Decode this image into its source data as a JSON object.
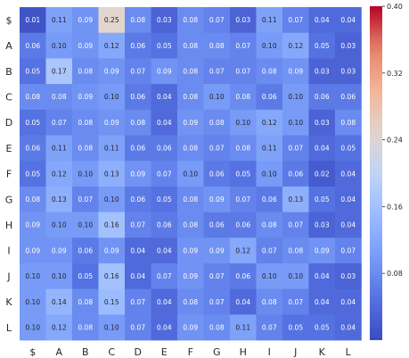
{
  "chart_data": {
    "type": "heatmap",
    "x_categories": [
      "$",
      "A",
      "B",
      "C",
      "D",
      "E",
      "F",
      "G",
      "H",
      "I",
      "J",
      "K",
      "L"
    ],
    "y_categories": [
      "$",
      "A",
      "B",
      "C",
      "D",
      "E",
      "F",
      "G",
      "H",
      "I",
      "J",
      "K",
      "L"
    ],
    "values": [
      [
        "0.01",
        "0.11",
        "0.09",
        "0.25",
        "0.08",
        "0.03",
        "0.08",
        "0.07",
        "0.03",
        "0.11",
        "0.07",
        "0.04",
        "0.04"
      ],
      [
        "0.06",
        "0.10",
        "0.09",
        "0.12",
        "0.06",
        "0.05",
        "0.08",
        "0.08",
        "0.07",
        "0.10",
        "0.12",
        "0.05",
        "0.03"
      ],
      [
        "0.05",
        "0.17",
        "0.08",
        "0.09",
        "0.07",
        "0.09",
        "0.08",
        "0.07",
        "0.07",
        "0.08",
        "0.09",
        "0.03",
        "0.03"
      ],
      [
        "0.08",
        "0.08",
        "0.09",
        "0.10",
        "0.06",
        "0.04",
        "0.08",
        "0.10",
        "0.08",
        "0.06",
        "0.10",
        "0.06",
        "0.06"
      ],
      [
        "0.05",
        "0.07",
        "0.08",
        "0.09",
        "0.08",
        "0.04",
        "0.09",
        "0.08",
        "0.10",
        "0.12",
        "0.10",
        "0.03",
        "0.08"
      ],
      [
        "0.06",
        "0.11",
        "0.08",
        "0.11",
        "0.06",
        "0.06",
        "0.08",
        "0.07",
        "0.08",
        "0.11",
        "0.07",
        "0.04",
        "0.05"
      ],
      [
        "0.05",
        "0.12",
        "0.10",
        "0.13",
        "0.09",
        "0.07",
        "0.10",
        "0.06",
        "0.05",
        "0.10",
        "0.06",
        "0.02",
        "0.04"
      ],
      [
        "0.08",
        "0.13",
        "0.07",
        "0.10",
        "0.06",
        "0.05",
        "0.08",
        "0.09",
        "0.07",
        "0.06",
        "0.13",
        "0.05",
        "0.04"
      ],
      [
        "0.09",
        "0.10",
        "0.10",
        "0.16",
        "0.07",
        "0.06",
        "0.08",
        "0.06",
        "0.06",
        "0.08",
        "0.07",
        "0.03",
        "0.04"
      ],
      [
        "0.09",
        "0.09",
        "0.06",
        "0.09",
        "0.04",
        "0.04",
        "0.09",
        "0.09",
        "0.12",
        "0.07",
        "0.08",
        "0.09",
        "0.07"
      ],
      [
        "0.10",
        "0.10",
        "0.05",
        "0.16",
        "0.04",
        "0.07",
        "0.09",
        "0.07",
        "0.06",
        "0.10",
        "0.10",
        "0.04",
        "0.03"
      ],
      [
        "0.10",
        "0.14",
        "0.08",
        "0.15",
        "0.07",
        "0.04",
        "0.08",
        "0.07",
        "0.04",
        "0.08",
        "0.07",
        "0.04",
        "0.04"
      ],
      [
        "0.10",
        "0.12",
        "0.08",
        "0.10",
        "0.07",
        "0.04",
        "0.09",
        "0.08",
        "0.11",
        "0.07",
        "0.05",
        "0.05",
        "0.04"
      ]
    ],
    "vmin": 0.0,
    "vmax": 0.4,
    "colormap": "coolwarm",
    "colorbar_ticks": [
      "0.08",
      "0.16",
      "0.24",
      "0.32",
      "0.40"
    ],
    "title": "",
    "xlabel": "",
    "ylabel": "",
    "grid": false,
    "legend": "colorbar-right"
  }
}
